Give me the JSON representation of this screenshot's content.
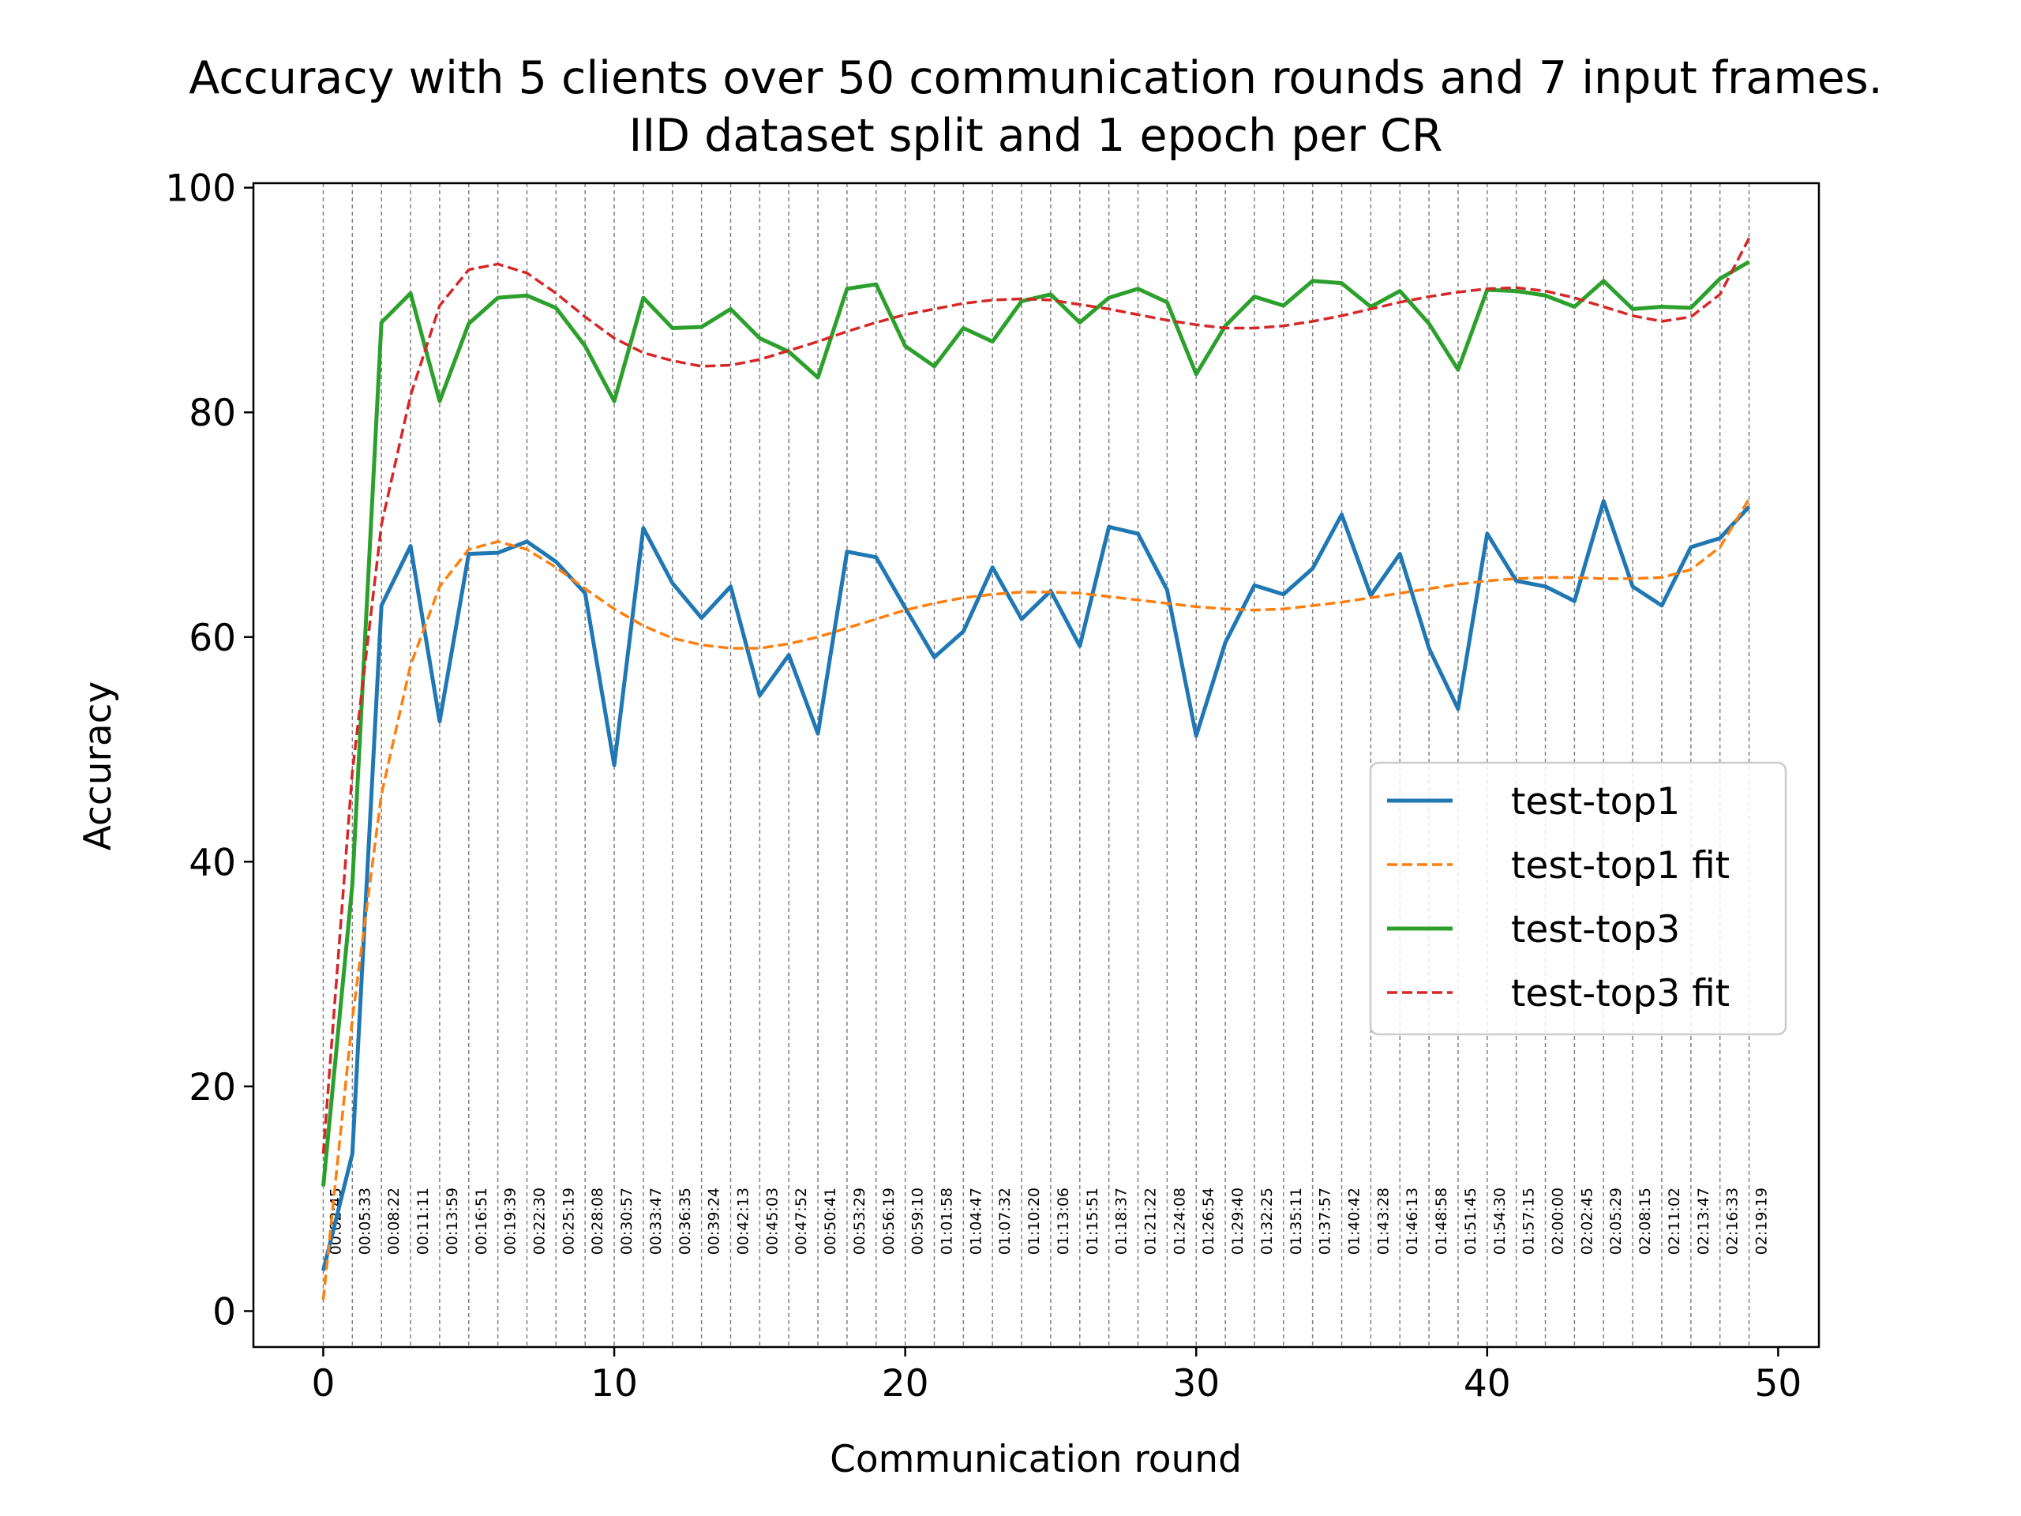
{
  "chart_data": {
    "type": "line",
    "title_line1": "Accuracy with 5 clients over 50 communication rounds and 7 input frames.",
    "title_line2": "IID dataset split and 1 epoch per CR",
    "xlabel": "Communication round",
    "ylabel": "Accuracy",
    "xlim": [
      -2.4,
      51.4
    ],
    "ylim": [
      -3.2,
      100.4
    ],
    "x_ticks": [
      0,
      10,
      20,
      30,
      40,
      50
    ],
    "y_ticks": [
      0,
      20,
      40,
      60,
      80,
      100
    ],
    "grid": "vertical dashed lines at each round",
    "legend_position": "center-right",
    "x": [
      0,
      1,
      2,
      3,
      4,
      5,
      6,
      7,
      8,
      9,
      10,
      11,
      12,
      13,
      14,
      15,
      16,
      17,
      18,
      19,
      20,
      21,
      22,
      23,
      24,
      25,
      26,
      27,
      28,
      29,
      30,
      31,
      32,
      33,
      34,
      35,
      36,
      37,
      38,
      39,
      40,
      41,
      42,
      43,
      44,
      45,
      46,
      47,
      48,
      49
    ],
    "round_times": [
      "00:02:45",
      "00:05:33",
      "00:08:22",
      "00:11:11",
      "00:13:59",
      "00:16:51",
      "00:19:39",
      "00:22:30",
      "00:25:19",
      "00:28:08",
      "00:30:57",
      "00:33:47",
      "00:36:35",
      "00:39:24",
      "00:42:13",
      "00:45:03",
      "00:47:52",
      "00:50:41",
      "00:53:29",
      "00:56:19",
      "00:59:10",
      "01:01:58",
      "01:04:47",
      "01:07:32",
      "01:10:20",
      "01:13:06",
      "01:15:51",
      "01:18:37",
      "01:21:22",
      "01:24:08",
      "01:26:54",
      "01:29:40",
      "01:32:25",
      "01:35:11",
      "01:37:57",
      "01:40:42",
      "01:43:28",
      "01:46:13",
      "01:48:58",
      "01:51:45",
      "01:54:30",
      "01:57:15",
      "02:00:00",
      "02:02:45",
      "02:05:29",
      "02:08:15",
      "02:11:02",
      "02:13:47",
      "02:16:33",
      "02:19:19"
    ],
    "series": [
      {
        "name": "test-top1",
        "color": "#1f77b4",
        "style": "solid",
        "values": [
          3.6,
          14.0,
          62.8,
          68.1,
          52.5,
          67.4,
          67.5,
          68.5,
          66.7,
          63.9,
          48.6,
          69.7,
          64.8,
          61.7,
          64.5,
          54.8,
          58.4,
          51.4,
          67.6,
          67.1,
          62.6,
          58.2,
          60.5,
          66.2,
          61.6,
          64.1,
          59.2,
          69.8,
          69.2,
          64.2,
          51.2,
          59.5,
          64.6,
          63.8,
          66.1,
          70.9,
          63.7,
          67.4,
          59.0,
          53.6,
          69.2,
          65.0,
          64.5,
          63.2,
          72.1,
          64.5,
          62.8,
          68.0,
          68.8,
          71.6
        ]
      },
      {
        "name": "test-top1 fit",
        "color": "#ff7f0e",
        "style": "dashed",
        "values": [
          1.0,
          26.0,
          46.0,
          57.5,
          64.5,
          67.8,
          68.5,
          67.8,
          66.2,
          64.3,
          62.5,
          61.0,
          59.9,
          59.3,
          59.0,
          59.0,
          59.4,
          60.0,
          60.8,
          61.6,
          62.4,
          63.0,
          63.5,
          63.8,
          64.0,
          64.0,
          63.9,
          63.6,
          63.3,
          63.0,
          62.7,
          62.5,
          62.4,
          62.5,
          62.8,
          63.1,
          63.5,
          63.9,
          64.3,
          64.7,
          65.0,
          65.2,
          65.3,
          65.3,
          65.2,
          65.2,
          65.3,
          66.0,
          68.0,
          72.3
        ]
      },
      {
        "name": "test-top3",
        "color": "#2ca02c",
        "style": "solid",
        "values": [
          11.1,
          38.0,
          88.0,
          90.6,
          81.0,
          87.9,
          90.2,
          90.4,
          89.3,
          85.9,
          81.0,
          90.2,
          87.5,
          87.6,
          89.2,
          86.6,
          85.4,
          83.1,
          91.0,
          91.4,
          85.9,
          84.1,
          87.5,
          86.3,
          89.9,
          90.5,
          88.0,
          90.2,
          91.0,
          89.8,
          83.4,
          87.7,
          90.3,
          89.5,
          91.7,
          91.5,
          89.4,
          90.8,
          87.9,
          83.8,
          90.9,
          90.8,
          90.4,
          89.4,
          91.7,
          89.2,
          89.4,
          89.3,
          91.9,
          93.4
        ]
      },
      {
        "name": "test-top3 fit",
        "color": "#d62728",
        "style": "dashed",
        "values": [
          14.0,
          48.0,
          70.0,
          81.5,
          89.5,
          92.7,
          93.2,
          92.4,
          90.6,
          88.5,
          86.6,
          85.3,
          84.6,
          84.1,
          84.2,
          84.7,
          85.5,
          86.3,
          87.2,
          88.0,
          88.7,
          89.2,
          89.7,
          90.0,
          90.1,
          90.0,
          89.6,
          89.2,
          88.7,
          88.2,
          87.8,
          87.5,
          87.5,
          87.7,
          88.1,
          88.6,
          89.2,
          89.8,
          90.3,
          90.7,
          91.0,
          91.1,
          90.8,
          90.2,
          89.4,
          88.6,
          88.1,
          88.5,
          90.5,
          95.5
        ]
      }
    ]
  }
}
